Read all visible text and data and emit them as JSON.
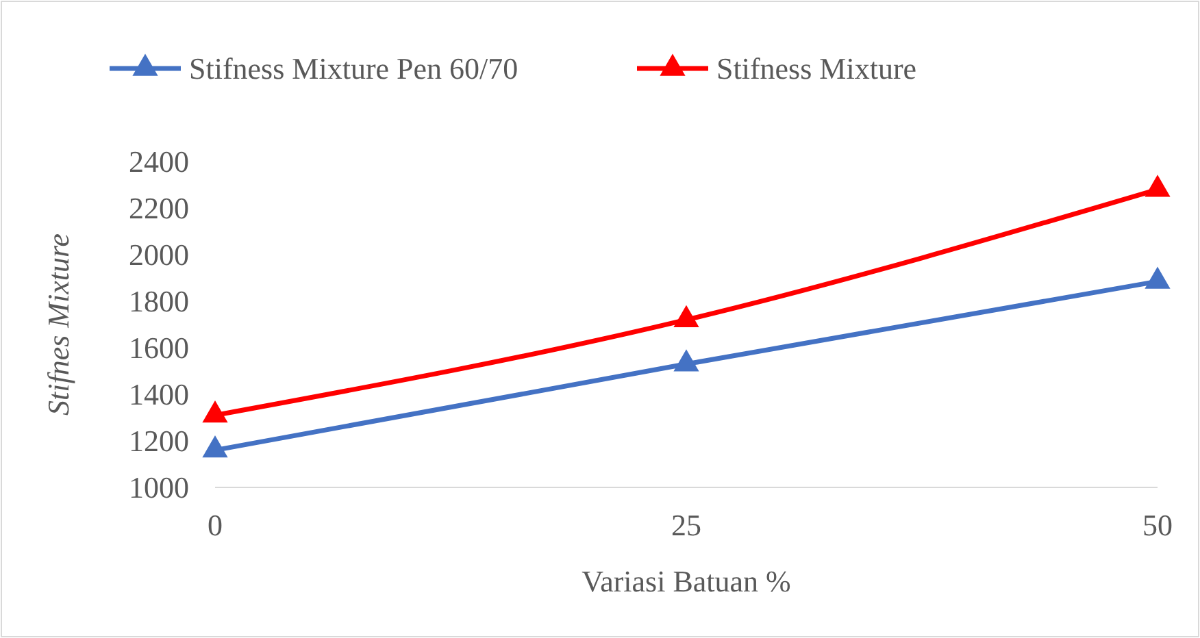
{
  "chart_data": {
    "type": "line",
    "xlabel": "Variasi Batuan %",
    "ylabel": "Stifnes Mixture",
    "x": [
      0,
      25,
      50
    ],
    "xlim": [
      0,
      50
    ],
    "xticks": [
      0,
      25,
      50
    ],
    "ylim": [
      1000,
      2400
    ],
    "yticks": [
      1000,
      1200,
      1400,
      1600,
      1800,
      2000,
      2200,
      2400
    ],
    "series": [
      {
        "name": "Stifness Mixture Pen 60/70",
        "color": "#4472c4",
        "values": [
          1160,
          1530,
          1885
        ]
      },
      {
        "name": "Stifness Mixture",
        "color": "#ff0000",
        "values": [
          1310,
          1720,
          2280
        ]
      }
    ],
    "marker": "triangle",
    "legend": "top",
    "grid": false
  }
}
